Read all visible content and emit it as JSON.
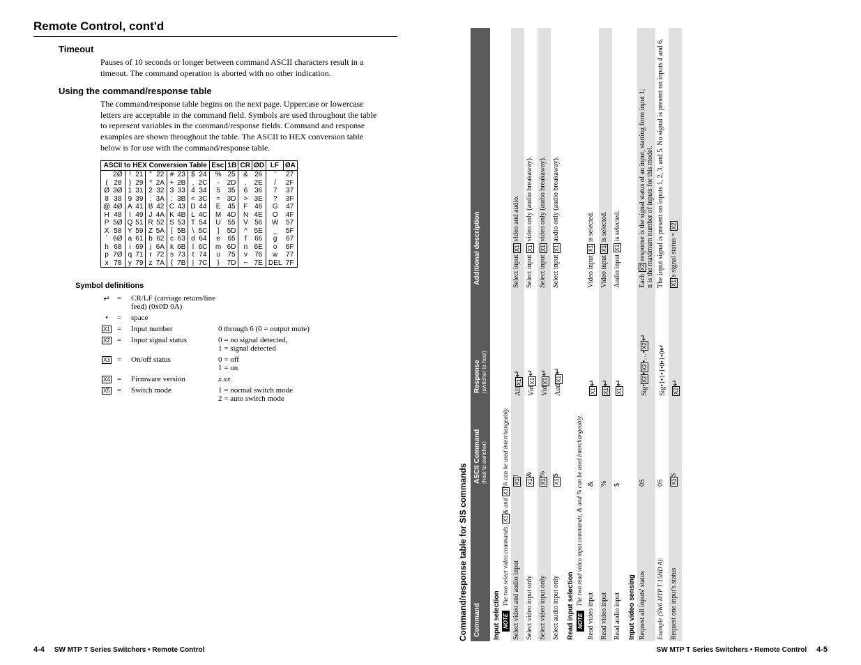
{
  "colors": {
    "page_bg": "#ffffff",
    "text": "#000000",
    "table_header_bg": "#5a5a5a",
    "row_shade": "#e0e0e0"
  },
  "fonts": {
    "body_family": "Georgia, 'Times New Roman', serif",
    "heading_family": "Arial, Helvetica, sans-serif",
    "body_pt": 11,
    "h1_pt": 17,
    "h2_pt": 13,
    "table_header_pt": 10
  },
  "left": {
    "page_header": "Remote Control, cont'd",
    "h_timeout": "Timeout",
    "timeout_body": "Pauses of 10 seconds or longer between command ASCII characters result in a timeout.  The command operation is aborted with no other indication.",
    "h_using": "Using the command/response table",
    "using_body": "The command/response table begins on the next page.  Uppercase or lowercase letters are acceptable in the command field.  Symbols are used throughout the table to represent variables in the command/response fields.  Command and response examples are shown throughout the table.  The ASCII to HEX conversion table below is for use with the command/response table.",
    "hex_title": "ASCII to HEX  Conversion Table",
    "hex_extra_headers": [
      "Esc",
      "1B",
      "CR",
      "ØD",
      "LF",
      "ØA"
    ],
    "hex_rows": [
      [
        " ",
        "2Ø",
        "!",
        "21",
        "\"",
        "22",
        "#",
        "23",
        "$",
        "24",
        "%",
        "25",
        "&",
        "26",
        "'",
        "27"
      ],
      [
        "(",
        "28",
        ")",
        "29",
        "*",
        "2A",
        "+",
        "2B",
        ",",
        "2C",
        "-",
        "2D",
        ".",
        "2E",
        "/",
        "2F"
      ],
      [
        "Ø",
        "3Ø",
        "1",
        "31",
        "2",
        "32",
        "3",
        "33",
        "4",
        "34",
        "5",
        "35",
        "6",
        "36",
        "7",
        "37"
      ],
      [
        "8",
        "38",
        "9",
        "39",
        ":",
        "3A",
        ";",
        "3B",
        "<",
        "3C",
        "=",
        "3D",
        ">",
        "3E",
        "?",
        "3F"
      ],
      [
        "@",
        "4Ø",
        "A",
        "41",
        "B",
        "42",
        "C",
        "43",
        "D",
        "44",
        "E",
        "45",
        "F",
        "46",
        "G",
        "47"
      ],
      [
        "H",
        "48",
        "I",
        "49",
        "J",
        "4A",
        "K",
        "4B",
        "L",
        "4C",
        "M",
        "4D",
        "N",
        "4E",
        "O",
        "4F"
      ],
      [
        "P",
        "5Ø",
        "Q",
        "51",
        "R",
        "52",
        "S",
        "53",
        "T",
        "54",
        "U",
        "55",
        "V",
        "56",
        "W",
        "57"
      ],
      [
        "X",
        "58",
        "Y",
        "59",
        "Z",
        "5A",
        "[",
        "5B",
        "\\",
        "5C",
        "]",
        "5D",
        "^",
        "5E",
        "_",
        "5F"
      ],
      [
        "`",
        "6Ø",
        "a",
        "61",
        "b",
        "62",
        "c",
        "63",
        "d",
        "64",
        "e",
        "65",
        "f",
        "66",
        "g",
        "67"
      ],
      [
        "h",
        "68",
        "i",
        "69",
        "j",
        "6A",
        "k",
        "6B",
        "l",
        "6C",
        "m",
        "6D",
        "n",
        "6E",
        "o",
        "6F"
      ],
      [
        "p",
        "7Ø",
        "q",
        "71",
        "r",
        "72",
        "s",
        "73",
        "t",
        "74",
        "u",
        "75",
        "v",
        "76",
        "w",
        "77"
      ],
      [
        "x",
        "78",
        "y",
        "79",
        "z",
        "7A",
        "{",
        "7B",
        "|",
        "7C",
        "}",
        "7D",
        "~",
        "7E",
        "DEL",
        "7F"
      ]
    ],
    "h_symdefs": "Symbol definitions",
    "sym": [
      {
        "sym": "↵",
        "eq": "=",
        "lbl": "CR/LF (carriage return/line feed) (0x0D 0A)",
        "val": ""
      },
      {
        "sym": "•",
        "eq": "=",
        "lbl": "space",
        "val": ""
      },
      {
        "sym": "X1",
        "eq": "=",
        "lbl": "Input number",
        "val": "0 through 6 (0 = output mute)",
        "boxed": true
      },
      {
        "sym": "X2",
        "eq": "=",
        "lbl": "Input signal status",
        "val": "0 = no signal detected,\n1 = signal detected",
        "boxed": true
      },
      {
        "sym": "X3",
        "eq": "=",
        "lbl": "On/off status",
        "val": "0 = off\n1 = on",
        "boxed": true
      },
      {
        "sym": "X4",
        "eq": "=",
        "lbl": "Firmware version",
        "val": "x.xx",
        "boxed": true,
        "valitalic": true
      },
      {
        "sym": "X5",
        "eq": "=",
        "lbl": "Switch mode",
        "val": "1 = normal switch mode\n2 = auto switch mode",
        "boxed": true
      }
    ],
    "footer_pn": "4-4",
    "footer_txt": "SW MTP T Series Switchers • Remote Control"
  },
  "right": {
    "title": "Command/response table for SIS commands",
    "head": {
      "c1": "Command",
      "c2": "ASCII Command",
      "c2s": "(host to switcher)",
      "c3": "Response",
      "c3s": "(switcher to host)",
      "c4": "Additional description"
    },
    "sections": [
      {
        "title": "Input selection",
        "note": "The two select video commands, [X1]& and [X1]% can be used interchangeably.",
        "rows": [
          {
            "shade": true,
            "c1": "Select video and audio input",
            "c2": "[X1]!",
            "c3": "All[X1]↵",
            "c4": "Select input [X1] video and audio."
          },
          {
            "shade": false,
            "c1": "Select video input only",
            "c2": "[X1]&",
            "c3": "Vid[X1]↵",
            "c4": "Select input [X1] video only (audio breakaway)."
          },
          {
            "shade": true,
            "c1": "Select video input only",
            "c2": "[X1]%",
            "c3": "Vid[X1]↵",
            "c4": "Select input [X1] video only (audio breakaway)."
          },
          {
            "shade": false,
            "c1": "Select audio input only",
            "c2": "[X1]$",
            "c3": "Aud[X1]↵",
            "c4": "Select input [X1] audio only (audio breakaway)."
          }
        ]
      },
      {
        "title": "Read input selection",
        "note": "The two read video input commands, & and % can be used interchangeably.",
        "rows": [
          {
            "shade": false,
            "c1": "Read video input",
            "c2": "&",
            "c3": "[X1]↵",
            "c4": "Video input [X1] is selected."
          },
          {
            "shade": true,
            "c1": "Read video input",
            "c2": "%",
            "c3": "[X1]↵",
            "c4": "Video input [X1] is selected."
          },
          {
            "shade": false,
            "c1": "Read audio input",
            "c2": "$",
            "c3": "[X1]↵",
            "c4": "Audio input [X1] is selected."
          }
        ]
      },
      {
        "title": "Input video sensing",
        "rows": [
          {
            "shade": true,
            "c1": "Request all inputs' status",
            "c2": "0S",
            "c3": "Sig•[X2]•[X2]•…•[X2]↵",
            "c4": "Each [X2] response is the signal status of an input, starting from input 1;\nn is the maximum number of inputs for this model."
          },
          {
            "shade": false,
            "c1": "Example (SW6 MTP T 15HD A):",
            "c2": "0S",
            "c3": "Sig•1•1•1•0•1•0↵",
            "c4": "The input signal is present on inputs 1, 2, 3, and 5.  No signal is present on inputs 4 and 6.",
            "italic": true
          },
          {
            "shade": true,
            "c1": "Request one input's status",
            "c2": "[X1]S",
            "c3": "[X2]↵",
            "c4": "[X1]'s signal status = [X2]"
          }
        ]
      }
    ],
    "footer_txt": "SW MTP T Series Switchers • Remote Control",
    "footer_pn": "4-5"
  }
}
